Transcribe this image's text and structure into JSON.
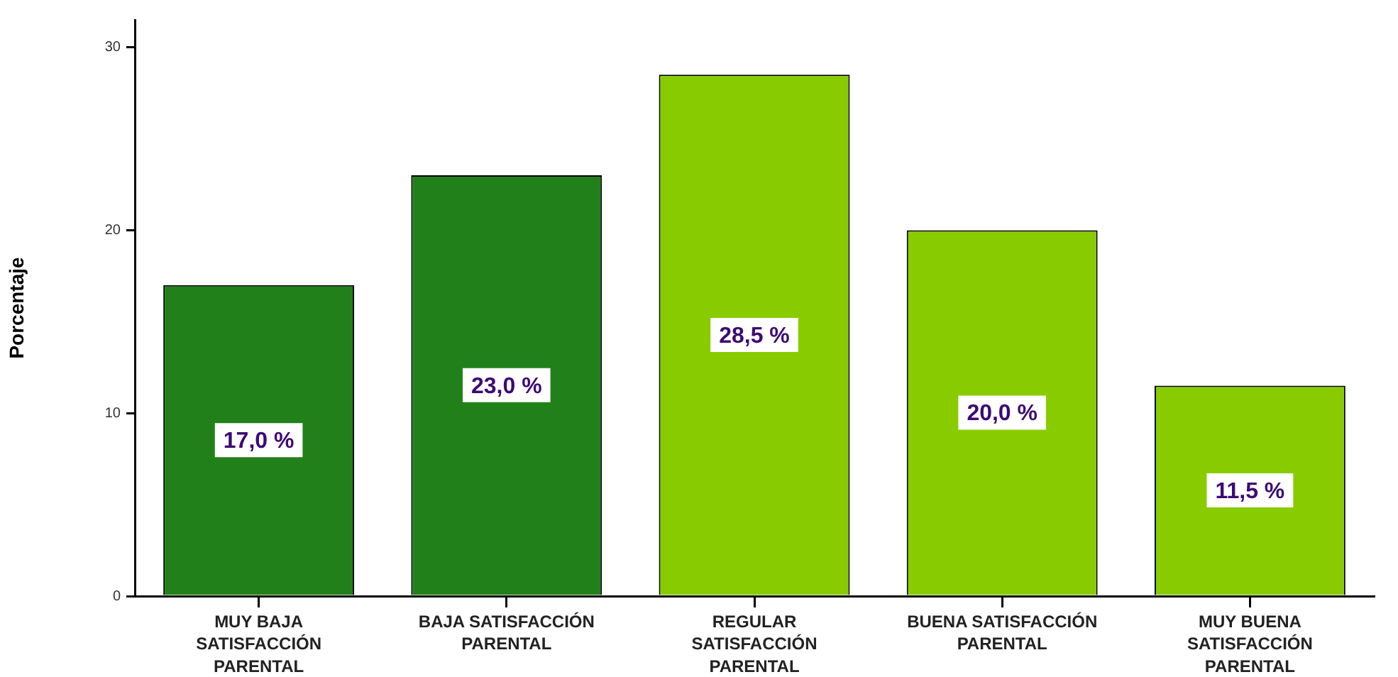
{
  "chart_data": {
    "type": "bar",
    "ylabel": "Porcentaje",
    "categories": [
      "MUY BAJA SATISFACCIÓN PARENTAL",
      "BAJA SATISFACCIÓN PARENTAL",
      "REGULAR SATISFACCIÓN PARENTAL",
      "BUENA SATISFACCIÓN PARENTAL",
      "MUY BUENA SATISFACCIÓN PARENTAL"
    ],
    "values": [
      17.0,
      23.0,
      28.5,
      20.0,
      11.5
    ],
    "colors": [
      "#22801a",
      "#22801a",
      "#88cc00",
      "#88cc00",
      "#88cc00"
    ],
    "value_labels": [
      "17,0 %",
      "23,0 %",
      "28,5 %",
      "20,0 %",
      "11,5 %"
    ],
    "ylim": [
      0,
      31.5
    ],
    "yticks": [
      0,
      10,
      20,
      30
    ]
  }
}
